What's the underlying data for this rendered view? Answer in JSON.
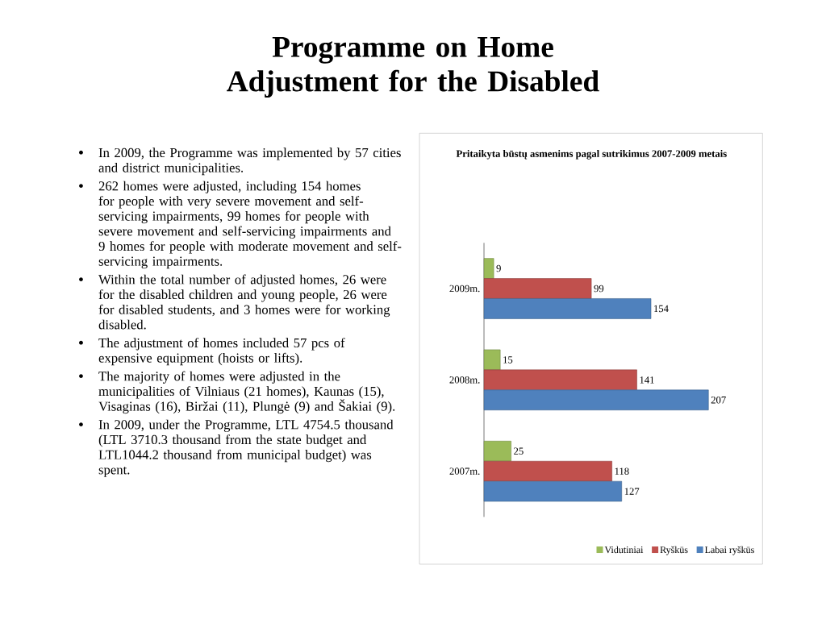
{
  "chart_data": {
    "type": "bar",
    "orientation": "horizontal",
    "title": "Programme on Home Adjustment for the Disabled",
    "subtitle": "Pritaikyta būstų asmenims pagal sutrikimus 2007-2009 metais",
    "categories": [
      "2009m.",
      "2008m.",
      "2007m."
    ],
    "series": [
      {
        "name": "Vidutiniai",
        "color": "#9bbb59",
        "values": [
          9,
          15,
          25
        ]
      },
      {
        "name": "Ryškūs",
        "color": "#c0504d",
        "values": [
          99,
          141,
          118
        ]
      },
      {
        "name": "Labai ryškūs",
        "color": "#4f81bd",
        "values": [
          154,
          207,
          127
        ]
      }
    ],
    "data_labels": true,
    "legend": "bottom right",
    "annotations": [
      "In 2009, the Programme was implemented by  57 cities and district municipalities.",
      "262 homes were adjusted, including 154 homes for people with very severe movement and self-servicing impairments, 99 homes for people with severe movement and self-servicing impairments and 9 homes for people with moderate movement and self-servicing impairments.",
      "Within the total number of adjusted homes, 26 were for the disabled children and young people, 26 were for disabled students, and 3 homes were for working disabled.",
      "The adjustment of homes included 57 pcs of expensive equipment (hoists or lifts).",
      "The majority of homes were adjusted in the municipalities of Vilniaus (21 homes), Kaunas (15), Visaginas (16), Biržai (11), Plungė (9) and Šakiai (9).",
      "In 2009, under the Programme, LTL 4754.5 thousand (LTL 3710.3 thousand from the state budget and LTL1044.2 thousand from municipal budget) was spent."
    ]
  }
}
